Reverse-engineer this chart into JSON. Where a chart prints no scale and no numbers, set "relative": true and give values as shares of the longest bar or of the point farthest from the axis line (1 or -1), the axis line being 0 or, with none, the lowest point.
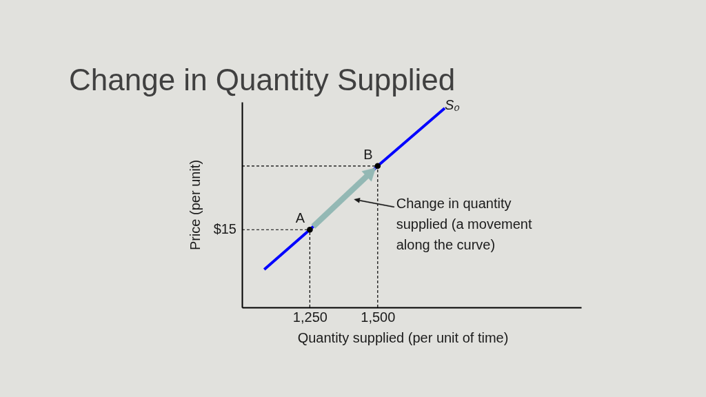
{
  "chart_data": {
    "type": "line",
    "title": "Change in Quantity Supplied",
    "xlabel": "Quantity supplied (per unit of time)",
    "ylabel": "Price (per unit)",
    "relative": true,
    "xlim": [
      1000,
      2250
    ],
    "xticks": [
      {
        "value": 1250,
        "label": "1,250"
      },
      {
        "value": 1500,
        "label": "1,500"
      }
    ],
    "series": [
      {
        "name": "S₀",
        "color": "#0000ff",
        "x": [
          1082,
          1250,
          1500,
          1747
        ],
        "values": [
          0.19,
          0.39,
          0.71,
          1.0
        ]
      },
      {
        "type": "scatter",
        "color": "#000000",
        "marker": "circle",
        "x": [
          1250,
          1500
        ],
        "values": [
          0.39,
          0.71
        ]
      }
    ],
    "ref_lines": [
      {
        "axis": "x",
        "value": 1250,
        "color": "#000000",
        "line_style": "dashed"
      },
      {
        "axis": "x",
        "value": 1500,
        "color": "#000000",
        "line_style": "dashed"
      },
      {
        "axis": "y",
        "value": 0.39,
        "color": "#000000",
        "line_style": "dashed"
      },
      {
        "axis": "y",
        "value": 0.71,
        "color": "#000000",
        "line_style": "dashed"
      }
    ],
    "annotations": [
      {
        "text": "A",
        "x": 1250,
        "y": 0.39
      },
      {
        "text": "B",
        "x": 1500,
        "y": 0.71
      },
      "$15",
      "Change in quantity supplied (a movement along the curve)"
    ]
  }
}
